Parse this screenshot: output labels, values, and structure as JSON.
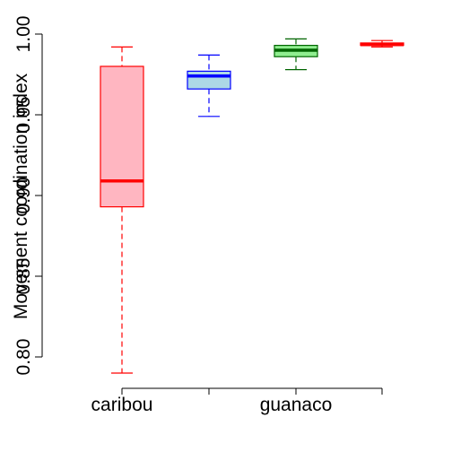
{
  "chart_data": {
    "type": "boxplot",
    "ylabel": "Movement coordination index",
    "ylim": [
      0.78,
      1.0
    ],
    "y_ticks": [
      "0.80",
      "0.85",
      "0.90",
      "0.95",
      "1.00"
    ],
    "categories": [
      "caribou",
      "",
      "guanaco",
      ""
    ],
    "boxes": [
      {
        "category_index": 0,
        "min": 0.79,
        "q1": 0.893,
        "median": 0.909,
        "q3": 0.98,
        "max": 0.992,
        "fill": "#ffb6c1",
        "stroke": "#ff0000"
      },
      {
        "category_index": 1,
        "min": 0.949,
        "q1": 0.966,
        "median": 0.974,
        "q3": 0.977,
        "max": 0.987,
        "fill": "#add8e6",
        "stroke": "#0000ff"
      },
      {
        "category_index": 2,
        "min": 0.978,
        "q1": 0.986,
        "median": 0.99,
        "q3": 0.993,
        "max": 0.997,
        "fill": "#90ee90",
        "stroke": "#006400"
      },
      {
        "category_index": 3,
        "min": 0.992,
        "q1": 0.993,
        "median": 0.9935,
        "q3": 0.9945,
        "max": 0.996,
        "fill": "#ff9999",
        "stroke": "#ff0000"
      }
    ]
  }
}
